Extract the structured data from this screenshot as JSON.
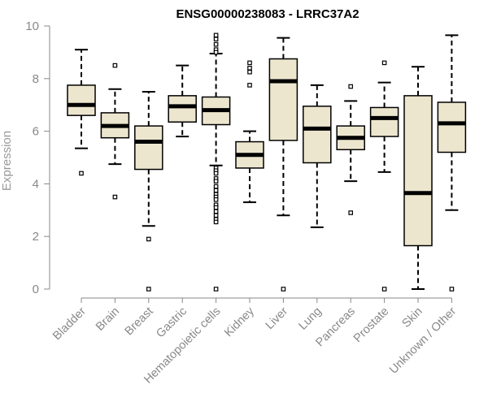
{
  "chart_data": {
    "type": "boxplot",
    "title": "ENSG00000238083 - LRRC37A2",
    "ylabel": "Expression",
    "xlabel": "",
    "ylim": [
      0,
      10
    ],
    "yticks": [
      0,
      2,
      4,
      6,
      8,
      10
    ],
    "box_fill": "#ede6cf",
    "categories": [
      "Bladder",
      "Brain",
      "Breast",
      "Gastric",
      "Hematopoietic cells",
      "Kidney",
      "Liver",
      "Lung",
      "Pancreas",
      "Prostate",
      "Skin",
      "Unknown / Other"
    ],
    "boxes": [
      {
        "whislo": 5.35,
        "q1": 6.6,
        "med": 7.0,
        "q3": 7.75,
        "whishi": 9.1,
        "fliers": [
          4.4
        ]
      },
      {
        "whislo": 4.75,
        "q1": 5.75,
        "med": 6.2,
        "q3": 6.7,
        "whishi": 7.6,
        "fliers": [
          3.5,
          8.5
        ]
      },
      {
        "whislo": 2.4,
        "q1": 4.55,
        "med": 5.6,
        "q3": 6.2,
        "whishi": 7.5,
        "fliers": [
          1.9,
          0.0
        ]
      },
      {
        "whislo": 5.8,
        "q1": 6.35,
        "med": 6.95,
        "q3": 7.35,
        "whishi": 8.5,
        "fliers": []
      },
      {
        "whislo": 4.7,
        "q1": 6.25,
        "med": 6.8,
        "q3": 7.3,
        "whishi": 8.95,
        "fliers": [
          9.65,
          9.5,
          9.3,
          9.1,
          9.0,
          4.6,
          4.5,
          4.4,
          4.2,
          4.1,
          3.9,
          3.75,
          3.6,
          3.5,
          3.4,
          3.2,
          3.1,
          2.95,
          2.8,
          2.65,
          2.55,
          0.0
        ]
      },
      {
        "whislo": 3.3,
        "q1": 4.6,
        "med": 5.1,
        "q3": 5.6,
        "whishi": 6.0,
        "fliers": [
          8.6,
          8.4,
          8.25,
          7.75
        ]
      },
      {
        "whislo": 2.8,
        "q1": 5.65,
        "med": 7.9,
        "q3": 8.75,
        "whishi": 9.55,
        "fliers": [
          0.0
        ]
      },
      {
        "whislo": 2.35,
        "q1": 4.8,
        "med": 6.1,
        "q3": 6.95,
        "whishi": 7.75,
        "fliers": []
      },
      {
        "whislo": 4.1,
        "q1": 5.3,
        "med": 5.75,
        "q3": 6.2,
        "whishi": 7.15,
        "fliers": [
          2.9,
          7.7
        ]
      },
      {
        "whislo": 4.45,
        "q1": 5.8,
        "med": 6.5,
        "q3": 6.9,
        "whishi": 7.85,
        "fliers": [
          8.6,
          0.0
        ]
      },
      {
        "whislo": 0.0,
        "q1": 1.65,
        "med": 3.65,
        "q3": 7.35,
        "whishi": 8.45,
        "fliers": []
      },
      {
        "whislo": 3.0,
        "q1": 5.2,
        "med": 6.3,
        "q3": 7.1,
        "whishi": 9.65,
        "fliers": [
          0.0
        ]
      }
    ]
  }
}
